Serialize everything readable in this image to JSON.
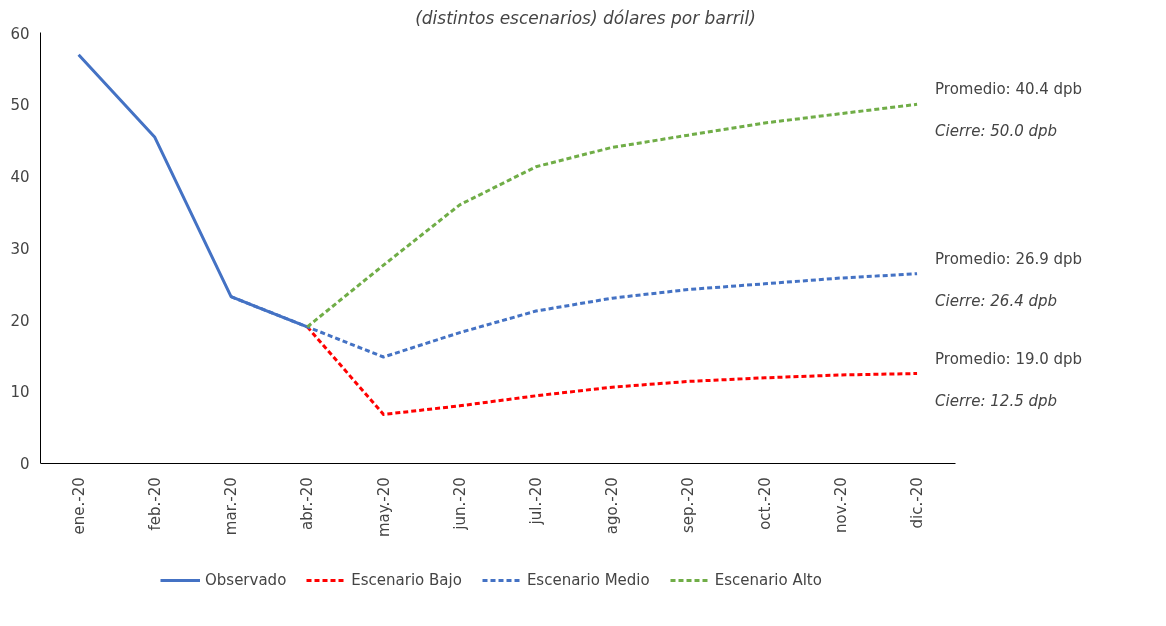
{
  "chart_data": {
    "type": "line",
    "title": "(distintos escenarios) dólares por barril)",
    "categories": [
      "ene.-20",
      "feb.-20",
      "mar.-20",
      "abr.-20",
      "may.-20",
      "jun.-20",
      "jul.-20",
      "ago.-20",
      "sep.-20",
      "oct.-20",
      "nov.-20",
      "dic.-20"
    ],
    "series": [
      {
        "name": "Observado",
        "color": "#4472c4",
        "line_style": "solid",
        "values": [
          56.9,
          45.4,
          23.2,
          19.0,
          null,
          null,
          null,
          null,
          null,
          null,
          null,
          null
        ]
      },
      {
        "name": "Escenario Bajo",
        "color": "#ff0000",
        "line_style": "dashed",
        "values": [
          null,
          null,
          null,
          19.0,
          6.8,
          8.0,
          9.4,
          10.6,
          11.4,
          11.9,
          12.3,
          12.5
        ]
      },
      {
        "name": "Escenario Medio",
        "color": "#4472c4",
        "line_style": "dashed",
        "values": [
          null,
          null,
          23.2,
          19.0,
          14.8,
          18.2,
          21.2,
          23.0,
          24.2,
          25.0,
          25.8,
          26.4
        ]
      },
      {
        "name": "Escenario Alto",
        "color": "#70ad47",
        "line_style": "dashed",
        "values": [
          null,
          null,
          null,
          19.0,
          27.6,
          36.0,
          41.3,
          44.0,
          45.7,
          47.4,
          48.7,
          50.0
        ]
      }
    ],
    "ylim": [
      0,
      60
    ],
    "yticks": [
      0,
      10,
      20,
      30,
      40,
      50,
      60
    ],
    "grid": false,
    "legend": "bottom",
    "marker": "none",
    "annotations": [
      {
        "text": "Promedio: 40.4 dpb",
        "x": "dic.-20",
        "y": 50.0
      },
      {
        "text": "Cierre: 50.0 dpb",
        "x": "dic.-20",
        "y": 50.0
      },
      {
        "text": "Promedio: 26.9 dpb",
        "x": "dic.-20",
        "y": 26.4
      },
      {
        "text": "Cierre: 26.4 dpb",
        "x": "dic.-20",
        "y": 26.4
      },
      {
        "text": "Promedio: 19.0 dpb",
        "x": "dic.-20",
        "y": 12.5
      },
      {
        "text": "Cierre: 12.5 dpb",
        "x": "dic.-20",
        "y": 12.5
      }
    ]
  }
}
